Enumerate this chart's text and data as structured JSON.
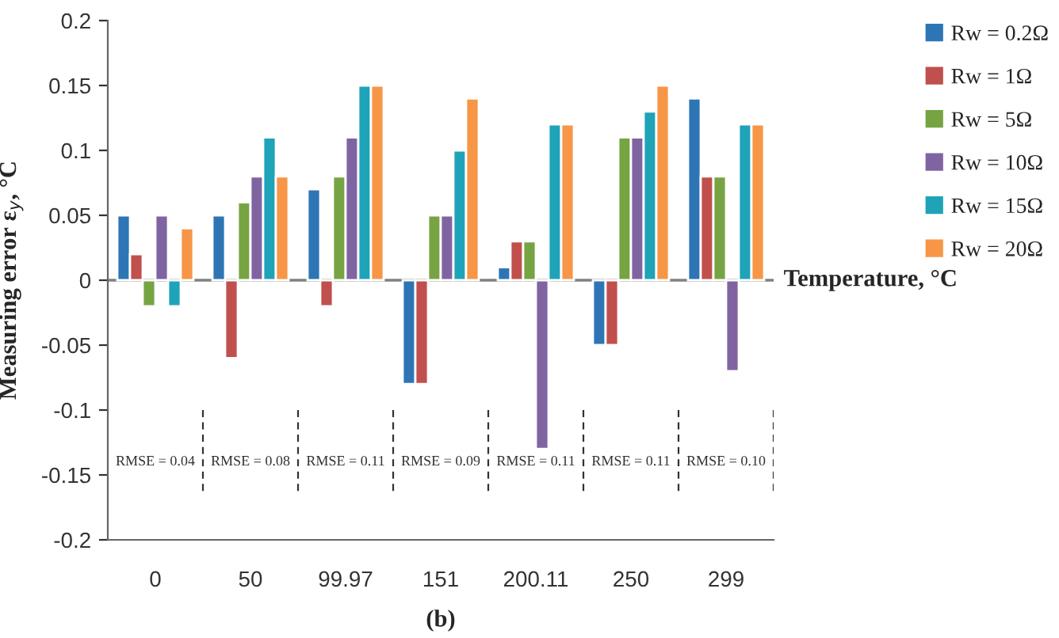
{
  "chart_data": {
    "type": "bar",
    "xlabel": "Temperature, °C",
    "ylabel": "Measuring error ε$_{y}$, °C",
    "categories": [
      "0",
      "50",
      "99.97",
      "151",
      "200.11",
      "250",
      "299"
    ],
    "series": [
      {
        "name": "Rw = 0.2Ω",
        "color": "#2e75b6",
        "values": [
          0.05,
          0.05,
          0.07,
          -0.08,
          0.01,
          -0.05,
          0.14
        ]
      },
      {
        "name": "Rw = 1Ω",
        "color": "#c0504d",
        "values": [
          0.02,
          -0.06,
          -0.02,
          -0.08,
          0.03,
          -0.05,
          0.08
        ]
      },
      {
        "name": "Rw = 5Ω",
        "color": "#77a443",
        "values": [
          -0.02,
          0.06,
          0.08,
          0.05,
          0.03,
          0.11,
          0.08
        ]
      },
      {
        "name": "Rw = 10Ω",
        "color": "#8064a2",
        "values": [
          0.05,
          0.08,
          0.11,
          0.05,
          -0.13,
          0.11,
          -0.07
        ]
      },
      {
        "name": "Rw = 15Ω",
        "color": "#1fa3b8",
        "values": [
          -0.02,
          0.11,
          0.15,
          0.1,
          0.12,
          0.13,
          0.12
        ]
      },
      {
        "name": "Rw = 20Ω",
        "color": "#f79646",
        "values": [
          0.04,
          0.08,
          0.15,
          0.14,
          0.12,
          0.15,
          0.12
        ]
      }
    ],
    "ylim": [
      -0.2,
      0.2
    ],
    "yticks": [
      0.2,
      0.15,
      0.1,
      0.05,
      0,
      -0.05,
      -0.1,
      -0.15,
      -0.2
    ],
    "ref_lines": [
      {
        "axis": "y",
        "value": 0,
        "color": "#808080"
      }
    ],
    "annotations": [
      "RMSE = 0.04",
      "RMSE = 0.08",
      "RMSE = 0.11",
      "RMSE = 0.09",
      "RMSE = 0.11",
      "RMSE = 0.11",
      "RMSE = 0.10",
      "(b)"
    ],
    "legend": "top right",
    "grid": false
  }
}
